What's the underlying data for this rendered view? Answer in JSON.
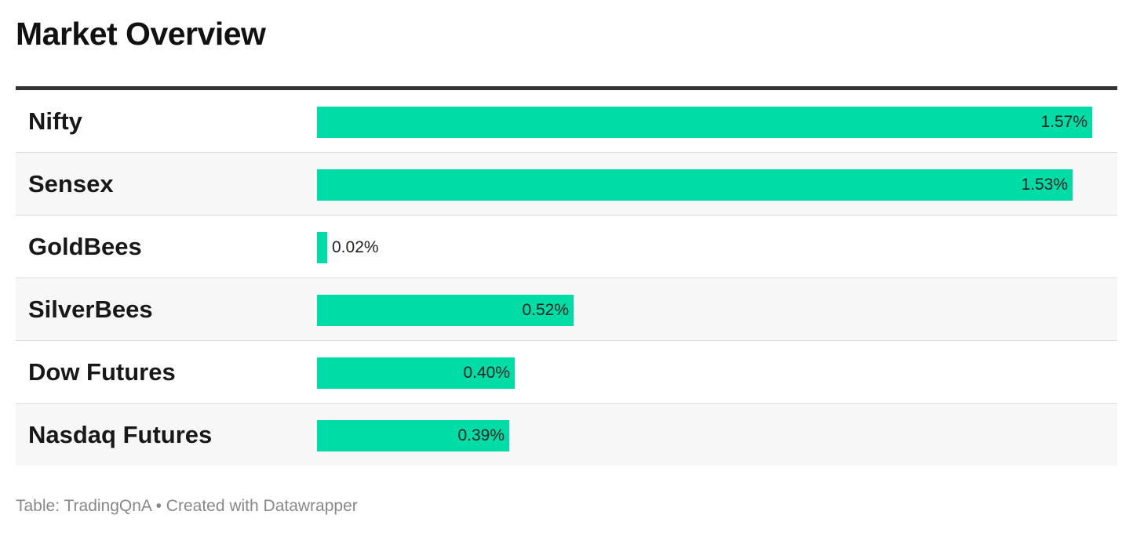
{
  "title": "Market Overview",
  "footer": "Table: TradingQnA • Created with Datawrapper",
  "colors": {
    "bar": "#00dca6",
    "header_rule": "#333333",
    "alt_row": "#f7f7f7"
  },
  "chart_data": {
    "type": "bar",
    "orientation": "horizontal",
    "title": "Market Overview",
    "categories": [
      "Nifty",
      "Sensex",
      "GoldBees",
      "SilverBees",
      "Dow Futures",
      "Nasdaq Futures"
    ],
    "values": [
      1.57,
      1.53,
      0.02,
      0.52,
      0.4,
      0.39
    ],
    "value_labels": [
      "1.57%",
      "1.53%",
      "0.02%",
      "0.52%",
      "0.40%",
      "0.39%"
    ],
    "unit": "%",
    "xlim": [
      0,
      1.57
    ],
    "grid": false,
    "legend": "none"
  }
}
